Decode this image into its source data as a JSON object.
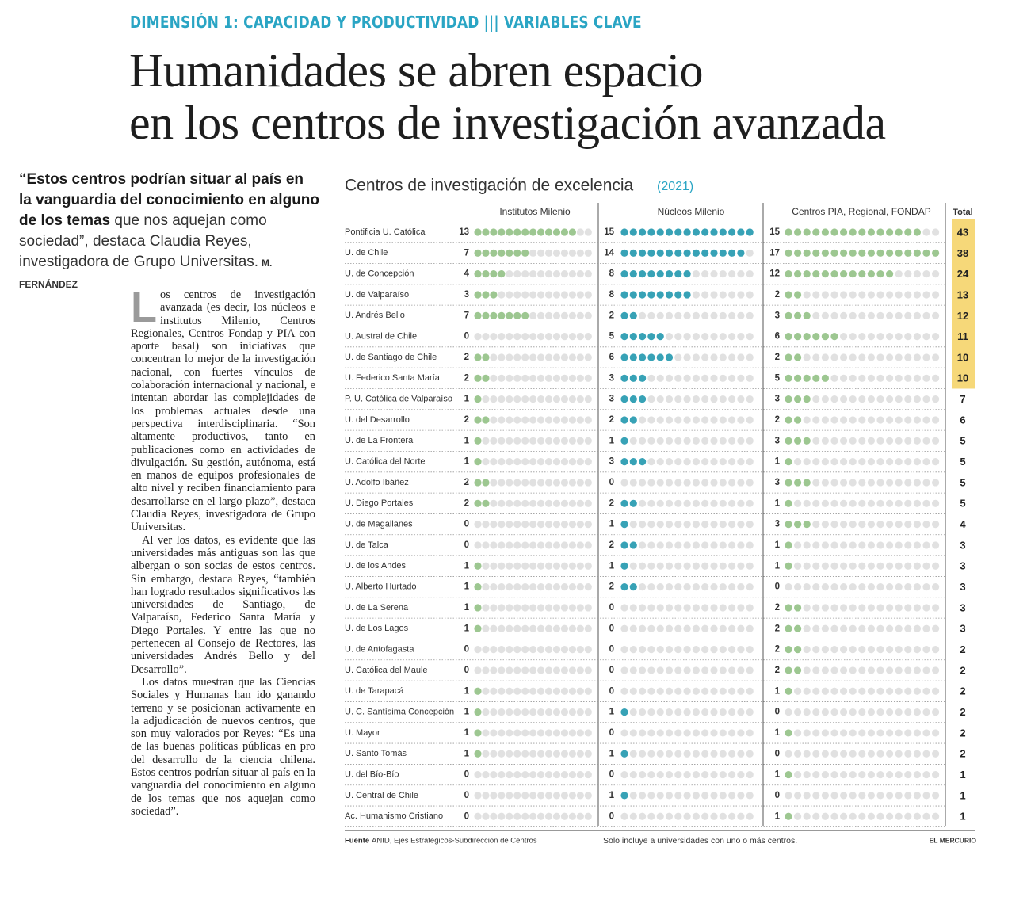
{
  "header": {
    "kicker": "DIMENSIÓN 1: CAPACIDAD Y PRODUCTIVIDAD ||| VARIABLES CLAVE",
    "title_lines": [
      "Humanidades se abren espacio",
      "en los centros de investigación avanzada"
    ]
  },
  "quote": {
    "bold": "“Estos centros podrían situar al país en la vanguardia del conocimiento en alguno de los temas",
    "rest": " que nos aquejan como sociedad”, destaca Claudia Reyes, investigadora de Grupo Universitas.",
    "byline": "M. FERNÁNDEZ"
  },
  "article": {
    "drop_cap": "L",
    "paragraphs": [
      "os centros de investigación avanzada (es decir, los núcleos e institutos Milenio, Centros Regionales, Centros Fondap y PIA con aporte basal) son iniciativas que concentran lo mejor de la investigación nacional, con fuertes vínculos de colaboración internacional y nacional, e intentan abordar las complejidades de los problemas actuales desde una perspectiva interdisciplinaria. “Son altamente productivos, tanto en publicaciones como en actividades de divulgación. Su gestión, autónoma, está en manos de equipos profesionales de alto nivel y reciben financiamiento para desarrollarse en el largo plazo”, destaca Claudia Reyes, investigadora de Grupo Universitas.",
      "Al ver los datos, es evidente que las universidades más antiguas son las que albergan o son socias de estos centros. Sin embargo, destaca Reyes, “también han logrado resultados significativos las universidades de Santiago, de Valparaíso, Federico Santa María y Diego Portales. Y entre las que no pertenecen al Consejo de Rectores, las universidades Andrés Bello y del Desarrollo”.",
      "Los datos muestran que las Ciencias Sociales y Humanas han ido ganando terreno y se posicionan activamente en la adjudicación de nuevos centros, que son muy valorados por Reyes: “Es una de las buenas políticas públicas en pro del desarrollo de la ciencia chilena. Estos centros podrían situar al país en la vanguardia del conocimiento en alguno de los temas que nos aquejan como sociedad”."
    ]
  },
  "chart": {
    "title": "Centros de investigación de excelencia",
    "year": "(2021)",
    "columns": [
      "Institutos Milenio",
      "Núcleos Milenio",
      "Centros  PIA, Regional, FONDAP",
      "Total"
    ],
    "rows": [
      {
        "name": "Pontificia U. Católica",
        "values": [
          13,
          15,
          15
        ],
        "total": 43
      },
      {
        "name": "U. de Chile",
        "values": [
          7,
          14,
          17
        ],
        "total": 38
      },
      {
        "name": "U. de Concepción",
        "values": [
          4,
          8,
          12
        ],
        "total": 24
      },
      {
        "name": "U. de Valparaíso",
        "values": [
          3,
          8,
          2
        ],
        "total": 13
      },
      {
        "name": "U. Andrés Bello",
        "values": [
          7,
          2,
          3
        ],
        "total": 12
      },
      {
        "name": "U. Austral de Chile",
        "values": [
          0,
          5,
          6
        ],
        "total": 11
      },
      {
        "name": "U. de Santiago de Chile",
        "values": [
          2,
          6,
          2
        ],
        "total": 10
      },
      {
        "name": "U. Federico Santa María",
        "values": [
          2,
          3,
          5
        ],
        "total": 10
      },
      {
        "name": "P. U. Católica de Valparaíso",
        "values": [
          1,
          3,
          3
        ],
        "total": 7
      },
      {
        "name": "U. del Desarrollo",
        "values": [
          2,
          2,
          2
        ],
        "total": 6
      },
      {
        "name": "U. de La Frontera",
        "values": [
          1,
          1,
          3
        ],
        "total": 5
      },
      {
        "name": "U. Católica del Norte",
        "values": [
          1,
          3,
          1
        ],
        "total": 5
      },
      {
        "name": "U. Adolfo Ibáñez",
        "values": [
          2,
          0,
          3
        ],
        "total": 5
      },
      {
        "name": "U. Diego Portales",
        "values": [
          2,
          2,
          1
        ],
        "total": 5
      },
      {
        "name": "U. de Magallanes",
        "values": [
          0,
          1,
          3
        ],
        "total": 4
      },
      {
        "name": "U. de Talca",
        "values": [
          0,
          2,
          1
        ],
        "total": 3
      },
      {
        "name": "U. de los Andes",
        "values": [
          1,
          1,
          1
        ],
        "total": 3
      },
      {
        "name": "U. Alberto Hurtado",
        "values": [
          1,
          2,
          0
        ],
        "total": 3
      },
      {
        "name": "U. de La Serena",
        "values": [
          1,
          0,
          2
        ],
        "total": 3
      },
      {
        "name": "U. de Los Lagos",
        "values": [
          1,
          0,
          2
        ],
        "total": 3
      },
      {
        "name": "U. de Antofagasta",
        "values": [
          0,
          0,
          2
        ],
        "total": 2
      },
      {
        "name": "U. Católica del Maule",
        "values": [
          0,
          0,
          2
        ],
        "total": 2
      },
      {
        "name": "U. de Tarapacá",
        "values": [
          1,
          0,
          1
        ],
        "total": 2
      },
      {
        "name": "U. C. Santísima Concepción",
        "values": [
          1,
          1,
          0
        ],
        "total": 2
      },
      {
        "name": "U. Mayor",
        "values": [
          1,
          0,
          1
        ],
        "total": 2
      },
      {
        "name": "U. Santo Tomás",
        "values": [
          1,
          1,
          0
        ],
        "total": 2
      },
      {
        "name": "U. del Bío-Bío",
        "values": [
          0,
          0,
          1
        ],
        "total": 1
      },
      {
        "name": "U. Central de Chile",
        "values": [
          0,
          1,
          0
        ],
        "total": 1
      },
      {
        "name": "Ac. Humanismo Cristiano",
        "values": [
          0,
          0,
          1
        ],
        "total": 1
      }
    ],
    "source_label": "Fuente",
    "source": "ANID, Ejes Estratégicos-Subdirección de Centros",
    "note": "Solo incluye a universidades con uno o más centros.",
    "credit": "EL MERCURIO"
  }
}
